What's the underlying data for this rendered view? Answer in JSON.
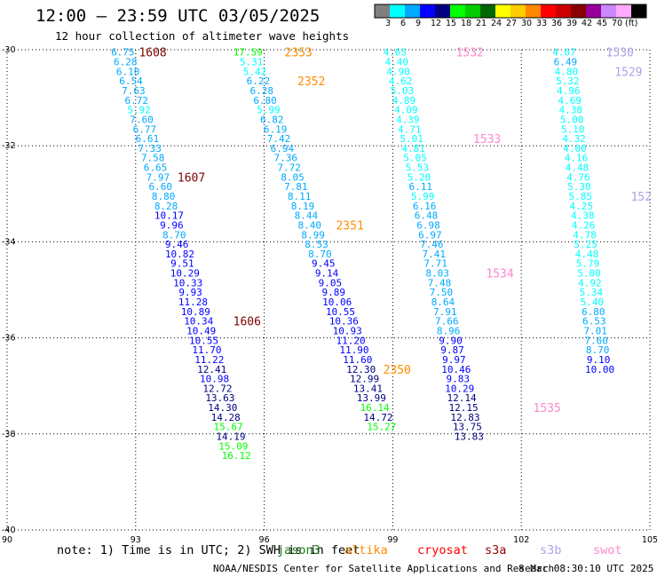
{
  "header": {
    "title": "12:00 — 23:59 UTC 03/05/2025",
    "subtitle": "12 hour collection of altimeter wave heights"
  },
  "footer": {
    "note": "note: 1) Time is in UTC; 2) SWH is in feet",
    "credit": "NOAA/NESDIS Center for Satellite Applications and Research",
    "timestamp": "8 Mar 08:30:10 UTC 2025"
  },
  "missions": [
    {
      "name": "jason3",
      "label": "jason3",
      "color": "#1a7a1a"
    },
    {
      "name": "altika",
      "label": "altika",
      "color": "#ff8c00"
    },
    {
      "name": "cryosat",
      "label": "cryosat",
      "color": "#ff0000"
    },
    {
      "name": "s3a",
      "label": "s3a",
      "color": "#990000"
    },
    {
      "name": "s3b",
      "label": "s3b",
      "color": "#b0a0e8"
    },
    {
      "name": "swot",
      "label": "swot",
      "color": "#ff88cc"
    }
  ],
  "colorbar": {
    "unit": "(ft)",
    "labels": [
      "3",
      "6",
      "9",
      "12",
      "15",
      "18",
      "21",
      "24",
      "27",
      "30",
      "33",
      "36",
      "39",
      "42",
      "45",
      "70"
    ],
    "colors": [
      "#808080",
      "#00ffff",
      "#00aaff",
      "#0000ff",
      "#000080",
      "#00ff00",
      "#00cc00",
      "#006600",
      "#ffff00",
      "#ffcc00",
      "#ff8800",
      "#ff0000",
      "#cc0000",
      "#880000",
      "#990099",
      "#cc88ff",
      "#ffaaff",
      "#000000"
    ]
  },
  "chart_data": {
    "type": "scatter",
    "xlim": [
      90,
      105
    ],
    "ylim": [
      -40,
      -30
    ],
    "x_ticks": [
      90,
      93,
      96,
      99,
      102,
      105
    ],
    "x_tick_labels": [
      "90",
      "93",
      "96",
      "99",
      "102",
      "105"
    ],
    "y_ticks": [
      -30,
      -32,
      -34,
      -36,
      -38,
      -40
    ],
    "y_tick_labels": [
      "-30",
      "-32",
      "-34",
      "-36",
      "-38",
      "-40"
    ],
    "grid": true,
    "series": [
      {
        "name": "s3a",
        "color": "#800000",
        "points": [
          {
            "x": 92.7,
            "y": -30.05,
            "v": 6.75
          },
          {
            "x": 92.76,
            "y": -30.25,
            "v": 6.28
          },
          {
            "x": 92.82,
            "y": -30.45,
            "v": 6.1
          },
          {
            "x": 92.89,
            "y": -30.65,
            "v": 6.54
          },
          {
            "x": 92.95,
            "y": -30.85,
            "v": 7.63
          },
          {
            "x": 93.02,
            "y": -31.05,
            "v": 6.72
          },
          {
            "x": 93.08,
            "y": -31.25,
            "v": 5.92
          },
          {
            "x": 93.14,
            "y": -31.45,
            "v": 7.6
          },
          {
            "x": 93.21,
            "y": -31.65,
            "v": 6.77
          },
          {
            "x": 93.27,
            "y": -31.85,
            "v": 6.61
          },
          {
            "x": 93.33,
            "y": -32.05,
            "v": 7.33
          },
          {
            "x": 93.4,
            "y": -32.25,
            "v": 7.58
          },
          {
            "x": 93.46,
            "y": -32.45,
            "v": 6.65
          },
          {
            "x": 93.52,
            "y": -32.65,
            "v": 7.97
          },
          {
            "x": 93.58,
            "y": -32.85,
            "v": 6.6
          },
          {
            "x": 93.65,
            "y": -33.05,
            "v": 8.8
          },
          {
            "x": 93.71,
            "y": -33.25,
            "v": 8.28
          },
          {
            "x": 93.78,
            "y": -33.45,
            "v": 10.17
          },
          {
            "x": 93.84,
            "y": -33.65,
            "v": 9.96
          },
          {
            "x": 93.9,
            "y": -33.85,
            "v": 8.7
          },
          {
            "x": 93.96,
            "y": -34.05,
            "v": 9.46
          },
          {
            "x": 94.03,
            "y": -34.25,
            "v": 10.82
          },
          {
            "x": 94.09,
            "y": -34.45,
            "v": 9.51
          },
          {
            "x": 94.15,
            "y": -34.65,
            "v": 10.29
          },
          {
            "x": 94.22,
            "y": -34.85,
            "v": 10.33
          },
          {
            "x": 94.28,
            "y": -35.05,
            "v": 9.93
          },
          {
            "x": 94.34,
            "y": -35.25,
            "v": 11.28
          },
          {
            "x": 94.4,
            "y": -35.45,
            "v": 10.89
          },
          {
            "x": 94.47,
            "y": -35.65,
            "v": 10.34
          },
          {
            "x": 94.53,
            "y": -35.85,
            "v": 10.49
          },
          {
            "x": 94.59,
            "y": -36.05,
            "v": 10.55
          },
          {
            "x": 94.66,
            "y": -36.25,
            "v": 11.7
          },
          {
            "x": 94.72,
            "y": -36.45,
            "v": 11.22
          },
          {
            "x": 94.78,
            "y": -36.65,
            "v": 12.41
          },
          {
            "x": 94.84,
            "y": -36.85,
            "v": 10.98
          },
          {
            "x": 94.91,
            "y": -37.05,
            "v": 12.72
          },
          {
            "x": 94.97,
            "y": -37.25,
            "v": 13.63
          },
          {
            "x": 95.03,
            "y": -37.45,
            "v": 14.3
          },
          {
            "x": 95.1,
            "y": -37.65,
            "v": 14.28
          },
          {
            "x": 95.16,
            "y": -37.85,
            "v": 15.67
          },
          {
            "x": 95.22,
            "y": -38.05,
            "v": 14.19
          },
          {
            "x": 95.28,
            "y": -38.25,
            "v": 15.09
          },
          {
            "x": 95.35,
            "y": -38.45,
            "v": 16.12
          }
        ]
      },
      {
        "name": "altika",
        "color": "#ff8c00",
        "points": [
          {
            "x": 95.62,
            "y": -30.05,
            "v": 17.59
          },
          {
            "x": 95.7,
            "y": -30.25,
            "v": 5.31
          },
          {
            "x": 95.78,
            "y": -30.45,
            "v": 5.42
          },
          {
            "x": 95.86,
            "y": -30.65,
            "v": 6.22
          },
          {
            "x": 95.94,
            "y": -30.85,
            "v": 6.28
          },
          {
            "x": 96.02,
            "y": -31.05,
            "v": 6.8
          },
          {
            "x": 96.1,
            "y": -31.25,
            "v": 5.99
          },
          {
            "x": 96.18,
            "y": -31.45,
            "v": 6.82
          },
          {
            "x": 96.26,
            "y": -31.65,
            "v": 6.19
          },
          {
            "x": 96.34,
            "y": -31.85,
            "v": 7.42
          },
          {
            "x": 96.42,
            "y": -32.05,
            "v": 6.94
          },
          {
            "x": 96.5,
            "y": -32.25,
            "v": 7.36
          },
          {
            "x": 96.58,
            "y": -32.45,
            "v": 7.72
          },
          {
            "x": 96.66,
            "y": -32.65,
            "v": 8.05
          },
          {
            "x": 96.74,
            "y": -32.85,
            "v": 7.81
          },
          {
            "x": 96.82,
            "y": -33.05,
            "v": 8.11
          },
          {
            "x": 96.9,
            "y": -33.25,
            "v": 8.19
          },
          {
            "x": 96.98,
            "y": -33.45,
            "v": 8.44
          },
          {
            "x": 97.06,
            "y": -33.65,
            "v": 8.4
          },
          {
            "x": 97.14,
            "y": -33.85,
            "v": 8.99
          },
          {
            "x": 97.22,
            "y": -34.05,
            "v": 8.53
          },
          {
            "x": 97.3,
            "y": -34.25,
            "v": 8.7
          },
          {
            "x": 97.38,
            "y": -34.45,
            "v": 9.45
          },
          {
            "x": 97.46,
            "y": -34.65,
            "v": 9.14
          },
          {
            "x": 97.54,
            "y": -34.85,
            "v": 9.05
          },
          {
            "x": 97.62,
            "y": -35.05,
            "v": 9.89
          },
          {
            "x": 97.7,
            "y": -35.25,
            "v": 10.06
          },
          {
            "x": 97.78,
            "y": -35.45,
            "v": 10.55
          },
          {
            "x": 97.86,
            "y": -35.65,
            "v": 10.36
          },
          {
            "x": 97.94,
            "y": -35.85,
            "v": 10.93
          },
          {
            "x": 98.02,
            "y": -36.05,
            "v": 11.2
          },
          {
            "x": 98.1,
            "y": -36.25,
            "v": 11.9
          },
          {
            "x": 98.18,
            "y": -36.45,
            "v": 11.6
          },
          {
            "x": 98.26,
            "y": -36.65,
            "v": 12.3
          },
          {
            "x": 98.34,
            "y": -36.85,
            "v": 12.99
          },
          {
            "x": 98.42,
            "y": -37.05,
            "v": 13.41
          },
          {
            "x": 98.5,
            "y": -37.25,
            "v": 13.99
          },
          {
            "x": 98.58,
            "y": -37.45,
            "v": 16.14
          },
          {
            "x": 98.66,
            "y": -37.65,
            "v": 14.72
          },
          {
            "x": 98.74,
            "y": -37.85,
            "v": 15.27
          }
        ]
      },
      {
        "name": "swot",
        "color": "#ff88cc",
        "points": [
          {
            "x": 99.05,
            "y": -30.05,
            "v": 4.65
          },
          {
            "x": 99.09,
            "y": -30.25,
            "v": 4.4
          },
          {
            "x": 99.13,
            "y": -30.45,
            "v": 4.9
          },
          {
            "x": 99.18,
            "y": -30.65,
            "v": 4.62
          },
          {
            "x": 99.22,
            "y": -30.85,
            "v": 5.03
          },
          {
            "x": 99.26,
            "y": -31.05,
            "v": 4.89
          },
          {
            "x": 99.31,
            "y": -31.25,
            "v": 4.09
          },
          {
            "x": 99.35,
            "y": -31.45,
            "v": 4.39
          },
          {
            "x": 99.39,
            "y": -31.65,
            "v": 4.71
          },
          {
            "x": 99.44,
            "y": -31.85,
            "v": 5.01
          },
          {
            "x": 99.48,
            "y": -32.05,
            "v": 4.81
          },
          {
            "x": 99.52,
            "y": -32.25,
            "v": 5.05
          },
          {
            "x": 99.57,
            "y": -32.45,
            "v": 5.53
          },
          {
            "x": 99.61,
            "y": -32.65,
            "v": 5.2
          },
          {
            "x": 99.65,
            "y": -32.85,
            "v": 6.11
          },
          {
            "x": 99.7,
            "y": -33.05,
            "v": 5.99
          },
          {
            "x": 99.74,
            "y": -33.25,
            "v": 6.16
          },
          {
            "x": 99.78,
            "y": -33.45,
            "v": 6.48
          },
          {
            "x": 99.83,
            "y": -33.65,
            "v": 6.98
          },
          {
            "x": 99.87,
            "y": -33.85,
            "v": 6.97
          },
          {
            "x": 99.91,
            "y": -34.05,
            "v": 7.46
          },
          {
            "x": 99.96,
            "y": -34.25,
            "v": 7.41
          },
          {
            "x": 100.0,
            "y": -34.45,
            "v": 7.71
          },
          {
            "x": 100.04,
            "y": -34.65,
            "v": 8.03
          },
          {
            "x": 100.09,
            "y": -34.85,
            "v": 7.48
          },
          {
            "x": 100.13,
            "y": -35.05,
            "v": 7.5
          },
          {
            "x": 100.17,
            "y": -35.25,
            "v": 8.64
          },
          {
            "x": 100.22,
            "y": -35.45,
            "v": 7.91
          },
          {
            "x": 100.26,
            "y": -35.65,
            "v": 7.66
          },
          {
            "x": 100.3,
            "y": -35.85,
            "v": 8.96
          },
          {
            "x": 100.35,
            "y": -36.05,
            "v": 9.9
          },
          {
            "x": 100.39,
            "y": -36.25,
            "v": 9.87
          },
          {
            "x": 100.43,
            "y": -36.45,
            "v": 9.97
          },
          {
            "x": 100.48,
            "y": -36.65,
            "v": 10.46
          },
          {
            "x": 100.52,
            "y": -36.85,
            "v": 9.83
          },
          {
            "x": 100.56,
            "y": -37.05,
            "v": 10.29
          },
          {
            "x": 100.61,
            "y": -37.25,
            "v": 12.14
          },
          {
            "x": 100.65,
            "y": -37.45,
            "v": 12.15
          },
          {
            "x": 100.69,
            "y": -37.65,
            "v": 12.83
          },
          {
            "x": 100.74,
            "y": -37.85,
            "v": 13.75
          },
          {
            "x": 100.78,
            "y": -38.05,
            "v": 13.83
          }
        ]
      },
      {
        "name": "s3b",
        "color": "#b0a0e8",
        "points": [
          {
            "x": 103.0,
            "y": -30.05,
            "v": 4.67
          },
          {
            "x": 103.03,
            "y": -30.25,
            "v": 6.49
          },
          {
            "x": 103.05,
            "y": -30.45,
            "v": 4.8
          },
          {
            "x": 103.08,
            "y": -30.65,
            "v": 5.32
          },
          {
            "x": 103.1,
            "y": -30.85,
            "v": 4.96
          },
          {
            "x": 103.13,
            "y": -31.05,
            "v": 4.69
          },
          {
            "x": 103.15,
            "y": -31.25,
            "v": 4.38
          },
          {
            "x": 103.18,
            "y": -31.45,
            "v": 5.0
          },
          {
            "x": 103.2,
            "y": -31.65,
            "v": 5.1
          },
          {
            "x": 103.23,
            "y": -31.85,
            "v": 4.32
          },
          {
            "x": 103.25,
            "y": -32.05,
            "v": 4.0
          },
          {
            "x": 103.28,
            "y": -32.25,
            "v": 4.16
          },
          {
            "x": 103.3,
            "y": -32.45,
            "v": 4.48
          },
          {
            "x": 103.33,
            "y": -32.65,
            "v": 4.76
          },
          {
            "x": 103.35,
            "y": -32.85,
            "v": 5.3
          },
          {
            "x": 103.38,
            "y": -33.05,
            "v": 5.85
          },
          {
            "x": 103.4,
            "y": -33.25,
            "v": 4.25
          },
          {
            "x": 103.43,
            "y": -33.45,
            "v": 4.38
          },
          {
            "x": 103.45,
            "y": -33.65,
            "v": 4.26
          },
          {
            "x": 103.48,
            "y": -33.85,
            "v": 4.78
          },
          {
            "x": 103.5,
            "y": -34.05,
            "v": 5.25
          },
          {
            "x": 103.53,
            "y": -34.25,
            "v": 4.48
          },
          {
            "x": 103.55,
            "y": -34.45,
            "v": 5.79
          },
          {
            "x": 103.58,
            "y": -34.65,
            "v": 5.0
          },
          {
            "x": 103.6,
            "y": -34.85,
            "v": 4.92
          },
          {
            "x": 103.63,
            "y": -35.05,
            "v": 5.34
          },
          {
            "x": 103.65,
            "y": -35.25,
            "v": 5.4
          },
          {
            "x": 103.68,
            "y": -35.45,
            "v": 6.8
          },
          {
            "x": 103.7,
            "y": -35.65,
            "v": 6.53
          },
          {
            "x": 103.73,
            "y": -35.85,
            "v": 7.01
          },
          {
            "x": 103.75,
            "y": -36.05,
            "v": 7.6
          },
          {
            "x": 103.78,
            "y": -36.25,
            "v": 8.7
          },
          {
            "x": 103.8,
            "y": -36.45,
            "v": 9.1
          },
          {
            "x": 103.83,
            "y": -36.65,
            "v": 10
          }
        ]
      }
    ],
    "annotations": [
      {
        "text": "1608",
        "x": 93.4,
        "y": -30.05,
        "color": "#800000"
      },
      {
        "text": "1607",
        "x": 94.3,
        "y": -32.65,
        "color": "#800000"
      },
      {
        "text": "1606",
        "x": 95.6,
        "y": -35.65,
        "color": "#800000"
      },
      {
        "text": "2353",
        "x": 96.8,
        "y": -30.05,
        "color": "#ff8c00"
      },
      {
        "text": "2352",
        "x": 97.1,
        "y": -30.65,
        "color": "#ff8c00"
      },
      {
        "text": "2351",
        "x": 98.0,
        "y": -33.65,
        "color": "#ff8c00"
      },
      {
        "text": "2350",
        "x": 99.1,
        "y": -36.65,
        "color": "#ff8c00"
      },
      {
        "text": "1532",
        "x": 100.8,
        "y": -30.05,
        "color": "#ff88cc"
      },
      {
        "text": "1533",
        "x": 101.2,
        "y": -31.85,
        "color": "#ff88cc"
      },
      {
        "text": "1534",
        "x": 101.5,
        "y": -34.65,
        "color": "#ff88cc"
      },
      {
        "text": "1535",
        "x": 102.6,
        "y": -37.45,
        "color": "#ff88cc"
      },
      {
        "text": "1530",
        "x": 104.3,
        "y": -30.05,
        "color": "#b0a0e8"
      },
      {
        "text": "1529",
        "x": 104.5,
        "y": -30.45,
        "color": "#b0a0e8"
      },
      {
        "text": "152",
        "x": 104.8,
        "y": -33.05,
        "color": "#b0a0e8"
      }
    ]
  }
}
